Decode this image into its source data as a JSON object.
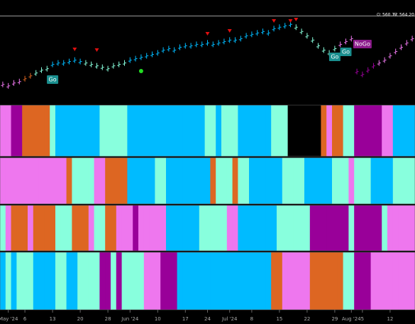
{
  "chart_data": {
    "type": "ohlc-heatmap",
    "open_label": "O:",
    "open": "560.77",
    "high_label": "H:",
    "high": "564.20",
    "current_price": 560.77,
    "ylim": [
      500,
      572
    ],
    "values": [
      513,
      512,
      514,
      515,
      517,
      519,
      521,
      523,
      524,
      527,
      528,
      528,
      529,
      530,
      529,
      528,
      527,
      526,
      525,
      524,
      526,
      527,
      528,
      530,
      531,
      532,
      533,
      534,
      535,
      537,
      538,
      537,
      539,
      540,
      540,
      541,
      541,
      542,
      541,
      542,
      543,
      544,
      544,
      545,
      547,
      548,
      549,
      550,
      549,
      552,
      553,
      554,
      555,
      553,
      550,
      547,
      544,
      540,
      537,
      535,
      538,
      541,
      543,
      545,
      522,
      520,
      523,
      526,
      528,
      530,
      533,
      536,
      539,
      542,
      545
    ],
    "bar_colors": [
      "#e7e",
      "#e7e",
      "#e7e",
      "#e7e",
      "#d62",
      "#d62",
      "#8fd",
      "#8fd",
      "#8fd",
      "#0bf",
      "#0bf",
      "#0bf",
      "#0bf",
      "#0bf",
      "#0bf",
      "#8fd",
      "#8fd",
      "#8fd",
      "#8fd",
      "#8fd",
      "#8fd",
      "#8fd",
      "#8fd",
      "#0bf",
      "#0bf",
      "#0bf",
      "#0bf",
      "#0bf",
      "#0bf",
      "#0bf",
      "#0bf",
      "#0bf",
      "#0bf",
      "#0bf",
      "#0bf",
      "#0bf",
      "#0bf",
      "#0bf",
      "#0bf",
      "#0bf",
      "#0bf",
      "#0bf",
      "#0bf",
      "#0bf",
      "#0bf",
      "#0bf",
      "#0bf",
      "#0bf",
      "#0bf",
      "#0bf",
      "#0bf",
      "#0bf",
      "#0bf",
      "#8fd",
      "#8fd",
      "#8fd",
      "#8fd",
      "#8fd",
      "#8fd",
      "#8fd",
      "#8fd",
      "#e7e",
      "#e7e",
      "#e7e",
      "#909",
      "#909",
      "#909",
      "#909",
      "#e7e",
      "#e7e",
      "#e7e",
      "#e7e",
      "#e7e",
      "#e7e",
      "#e7e"
    ],
    "annotations": [
      "Go",
      "Go",
      "Go",
      "NoGo"
    ],
    "bands": [
      [
        "#e7e",
        "#e7e",
        "#909",
        "#909",
        "#d62",
        "#d62",
        "#d62",
        "#d62",
        "#d62",
        "#8fd",
        "#0bf",
        "#0bf",
        "#0bf",
        "#0bf",
        "#0bf",
        "#0bf",
        "#0bf",
        "#0bf",
        "#8fd",
        "#8fd",
        "#8fd",
        "#8fd",
        "#8fd",
        "#0bf",
        "#0bf",
        "#0bf",
        "#0bf",
        "#0bf",
        "#0bf",
        "#0bf",
        "#0bf",
        "#0bf",
        "#0bf",
        "#0bf",
        "#0bf",
        "#0bf",
        "#0bf",
        "#8fd",
        "#8fd",
        "#0bf",
        "#8fd",
        "#8fd",
        "#8fd",
        "#0bf",
        "#0bf",
        "#0bf",
        "#0bf",
        "#0bf",
        "#0bf",
        "#8fd",
        "#8fd",
        "#8fd",
        "#000",
        "#000",
        "#000",
        "#000",
        "#000",
        "#000",
        "#d62",
        "#e7e",
        "#d62",
        "#d62",
        "#8fd",
        "#8fd",
        "#909",
        "#909",
        "#909",
        "#909",
        "#909",
        "#e7e",
        "#e7e",
        "#0bf",
        "#0bf",
        "#0bf",
        "#0bf"
      ],
      [
        "#e7e",
        "#e7e",
        "#e7e",
        "#e7e",
        "#e7e",
        "#e7e",
        "#e7e",
        "#e7e",
        "#e7e",
        "#e7e",
        "#e7e",
        "#e7e",
        "#d62",
        "#8fd",
        "#8fd",
        "#8fd",
        "#8fd",
        "#e7e",
        "#e7e",
        "#d62",
        "#d62",
        "#d62",
        "#d62",
        "#0bf",
        "#0bf",
        "#0bf",
        "#0bf",
        "#0bf",
        "#8fd",
        "#8fd",
        "#0bf",
        "#0bf",
        "#0bf",
        "#0bf",
        "#0bf",
        "#0bf",
        "#0bf",
        "#0bf",
        "#d62",
        "#8fd",
        "#8fd",
        "#8fd",
        "#d62",
        "#8fd",
        "#8fd",
        "#0bf",
        "#0bf",
        "#0bf",
        "#0bf",
        "#0bf",
        "#0bf",
        "#8fd",
        "#8fd",
        "#8fd",
        "#8fd",
        "#0bf",
        "#0bf",
        "#0bf",
        "#0bf",
        "#0bf",
        "#8fd",
        "#8fd",
        "#8fd",
        "#e7e",
        "#8fd",
        "#8fd",
        "#8fd",
        "#0bf",
        "#0bf",
        "#0bf",
        "#0bf",
        "#8fd",
        "#8fd",
        "#8fd",
        "#8fd"
      ],
      [
        "#8fd",
        "#e7e",
        "#d62",
        "#d62",
        "#d62",
        "#e7e",
        "#d62",
        "#d62",
        "#d62",
        "#d62",
        "#8fd",
        "#8fd",
        "#8fd",
        "#d62",
        "#d62",
        "#d62",
        "#e7e",
        "#8fd",
        "#8fd",
        "#d62",
        "#d62",
        "#e7e",
        "#e7e",
        "#e7e",
        "#909",
        "#e7e",
        "#e7e",
        "#e7e",
        "#e7e",
        "#e7e",
        "#0bf",
        "#0bf",
        "#0bf",
        "#0bf",
        "#0bf",
        "#0bf",
        "#8fd",
        "#8fd",
        "#8fd",
        "#8fd",
        "#8fd",
        "#e7e",
        "#e7e",
        "#0bf",
        "#0bf",
        "#0bf",
        "#0bf",
        "#0bf",
        "#0bf",
        "#0bf",
        "#8fd",
        "#8fd",
        "#8fd",
        "#8fd",
        "#8fd",
        "#8fd",
        "#909",
        "#909",
        "#909",
        "#909",
        "#909",
        "#909",
        "#909",
        "#8fd",
        "#909",
        "#909",
        "#909",
        "#909",
        "#909",
        "#8fd",
        "#e7e",
        "#e7e",
        "#e7e",
        "#e7e",
        "#e7e"
      ],
      [
        "#0bf",
        "#8fd",
        "#0bf",
        "#8fd",
        "#8fd",
        "#8fd",
        "#0bf",
        "#0bf",
        "#0bf",
        "#0bf",
        "#8fd",
        "#8fd",
        "#0bf",
        "#0bf",
        "#8fd",
        "#8fd",
        "#8fd",
        "#8fd",
        "#909",
        "#909",
        "#8fd",
        "#909",
        "#8fd",
        "#8fd",
        "#8fd",
        "#8fd",
        "#e7e",
        "#e7e",
        "#e7e",
        "#909",
        "#909",
        "#909",
        "#0bf",
        "#0bf",
        "#0bf",
        "#0bf",
        "#0bf",
        "#0bf",
        "#0bf",
        "#0bf",
        "#0bf",
        "#0bf",
        "#0bf",
        "#0bf",
        "#0bf",
        "#0bf",
        "#0bf",
        "#0bf",
        "#0bf",
        "#d62",
        "#d62",
        "#e7e",
        "#e7e",
        "#e7e",
        "#e7e",
        "#e7e",
        "#d62",
        "#d62",
        "#d62",
        "#d62",
        "#d62",
        "#d62",
        "#8fd",
        "#8fd",
        "#909",
        "#909",
        "#909",
        "#e7e",
        "#e7e",
        "#e7e",
        "#e7e",
        "#e7e",
        "#e7e",
        "#e7e",
        "#e7e"
      ]
    ],
    "xticks": [
      {
        "value": 1,
        "label": "May '24"
      },
      {
        "value": 4,
        "label": "6"
      },
      {
        "value": 9,
        "label": "13"
      },
      {
        "value": 14,
        "label": "20"
      },
      {
        "value": 19,
        "label": "28"
      },
      {
        "value": 23,
        "label": "Jun '24"
      },
      {
        "value": 28,
        "label": "10"
      },
      {
        "value": 33,
        "label": "17"
      },
      {
        "value": 37,
        "label": "24"
      },
      {
        "value": 41,
        "label": "Jul '24"
      },
      {
        "value": 45,
        "label": "8"
      },
      {
        "value": 50,
        "label": "15"
      },
      {
        "value": 55,
        "label": "22"
      },
      {
        "value": 60,
        "label": "29"
      },
      {
        "value": 63,
        "label": "Aug '24"
      },
      {
        "value": 65,
        "label": "5"
      },
      {
        "value": 70,
        "label": "12"
      }
    ]
  }
}
